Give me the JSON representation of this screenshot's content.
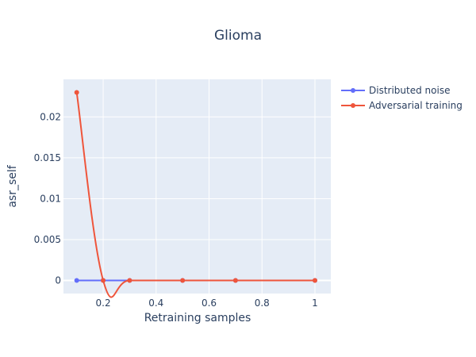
{
  "chart_data": {
    "type": "line",
    "title": "Glioma",
    "xlabel": "Retraining samples",
    "ylabel": "asr_self",
    "xlim": [
      0.05,
      1.06
    ],
    "ylim": [
      -0.0016,
      0.0246
    ],
    "x_ticks": [
      0.2,
      0.4,
      0.6,
      0.8,
      1
    ],
    "x_tick_labels": [
      "0.2",
      "0.4",
      "0.6",
      "0.8",
      "1"
    ],
    "y_ticks": [
      0,
      0.005,
      0.01,
      0.015,
      0.02
    ],
    "y_tick_labels": [
      "0",
      "0.005",
      "0.01",
      "0.015",
      "0.02"
    ],
    "grid": true,
    "legend_position": "top-right",
    "series": [
      {
        "name": "Distributed noise",
        "color": "#636efa",
        "x": [
          0.1,
          0.2,
          0.3,
          0.5,
          0.7,
          1
        ],
        "values": [
          0,
          0,
          0,
          0,
          0,
          0
        ]
      },
      {
        "name": "Adversarial training",
        "color": "#ef553b",
        "x": [
          0.1,
          0.2,
          0.3,
          0.5,
          0.7,
          1
        ],
        "values": [
          0.023,
          0,
          0,
          0,
          0,
          0
        ]
      }
    ]
  }
}
